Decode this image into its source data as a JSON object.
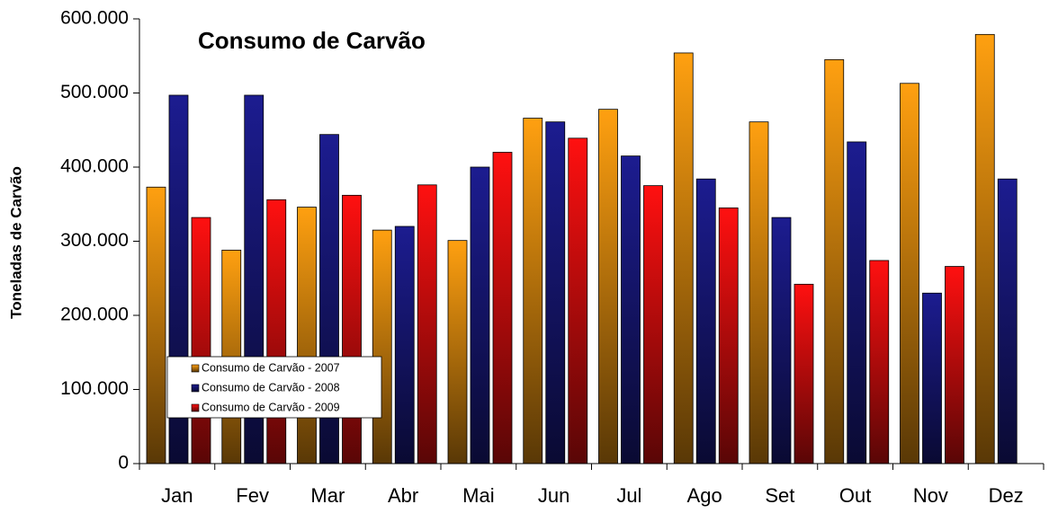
{
  "chart_data": {
    "type": "bar",
    "title": "Consumo de Carvão",
    "y_label": "Toneladas de Carvão",
    "categories": [
      "Jan",
      "Fev",
      "Mar",
      "Abr",
      "Mai",
      "Jun",
      "Jul",
      "Ago",
      "Set",
      "Out",
      "Nov",
      "Dez"
    ],
    "series": [
      {
        "name": "Consumo de Carvão - 2007",
        "color": "#ffa010",
        "values": [
          373000,
          288000,
          346000,
          315000,
          301000,
          466000,
          478000,
          554000,
          461000,
          545000,
          513000,
          579000
        ]
      },
      {
        "name": "Consumo de Carvão - 2008",
        "color": "#1c1c90",
        "values": [
          497000,
          497000,
          444000,
          320000,
          400000,
          461000,
          415000,
          384000,
          332000,
          434000,
          230000,
          384000
        ]
      },
      {
        "name": "Consumo de Carvão - 2009",
        "color": "#ff1010",
        "values": [
          332000,
          356000,
          362000,
          376000,
          420000,
          439000,
          375000,
          345000,
          242000,
          274000,
          266000,
          null
        ]
      }
    ],
    "ylim": [
      0,
      600000
    ],
    "yticks": [
      0,
      {
        "value": 100000,
        "label": "100.000"
      },
      {
        "value": 200000,
        "label": "200.000"
      },
      {
        "value": 300000,
        "label": "300.000"
      },
      {
        "value": 400000,
        "label": "400.000"
      },
      {
        "value": 500000,
        "label": "500.000"
      },
      {
        "value": 600000,
        "label": "600.000"
      }
    ],
    "grid": false,
    "legend": "lower-left"
  }
}
